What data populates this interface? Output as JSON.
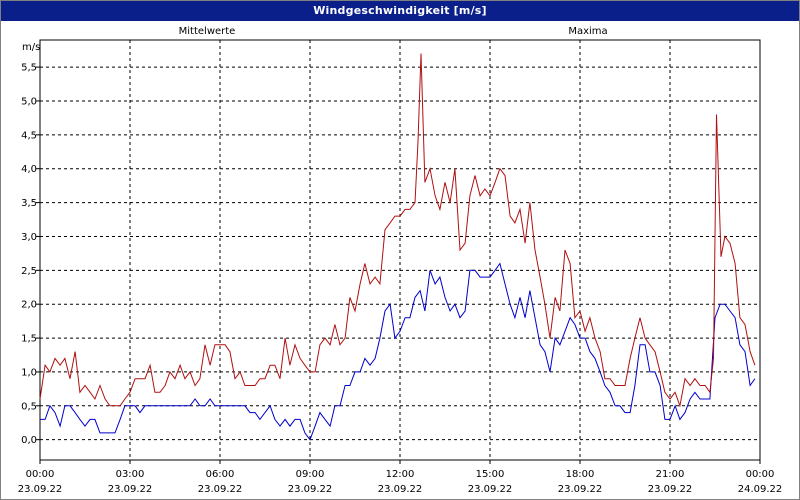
{
  "window": {
    "title": "Windgeschwindigkeit [m/s]"
  },
  "chart_data": {
    "type": "line",
    "title": "Windgeschwindigkeit [m/s]",
    "ylabel": "m/s",
    "xlabel": "",
    "ylim": [
      -0.3,
      5.9
    ],
    "xlim": [
      0,
      24
    ],
    "grid": true,
    "legend_placement": "top",
    "y_ticks": [
      "0,0",
      "0,5",
      "1,0",
      "1,5",
      "2,0",
      "2,5",
      "3,0",
      "3,5",
      "4,0",
      "4,5",
      "5,0",
      "5,5"
    ],
    "x_ticks": [
      {
        "time": "00:00",
        "date": "23.09.22"
      },
      {
        "time": "03:00",
        "date": "23.09.22"
      },
      {
        "time": "06:00",
        "date": "23.09.22"
      },
      {
        "time": "09:00",
        "date": "23.09.22"
      },
      {
        "time": "12:00",
        "date": "23.09.22"
      },
      {
        "time": "15:00",
        "date": "23.09.22"
      },
      {
        "time": "18:00",
        "date": "23.09.22"
      },
      {
        "time": "21:00",
        "date": "23.09.22"
      },
      {
        "time": "00:00",
        "date": "24.09.22"
      }
    ],
    "series": [
      {
        "name": "Mittelwerte",
        "color": "#0000cc",
        "points": [
          [
            0.0,
            0.3
          ],
          [
            0.17,
            0.3
          ],
          [
            0.33,
            0.5
          ],
          [
            0.5,
            0.4
          ],
          [
            0.67,
            0.2
          ],
          [
            0.83,
            0.5
          ],
          [
            1.0,
            0.5
          ],
          [
            1.17,
            0.4
          ],
          [
            1.33,
            0.3
          ],
          [
            1.5,
            0.2
          ],
          [
            1.67,
            0.3
          ],
          [
            1.83,
            0.3
          ],
          [
            2.0,
            0.1
          ],
          [
            2.17,
            0.1
          ],
          [
            2.33,
            0.1
          ],
          [
            2.5,
            0.1
          ],
          [
            2.67,
            0.3
          ],
          [
            2.83,
            0.5
          ],
          [
            3.0,
            0.5
          ],
          [
            3.17,
            0.5
          ],
          [
            3.33,
            0.4
          ],
          [
            3.5,
            0.5
          ],
          [
            3.67,
            0.5
          ],
          [
            3.83,
            0.5
          ],
          [
            4.0,
            0.5
          ],
          [
            4.17,
            0.5
          ],
          [
            4.33,
            0.5
          ],
          [
            4.5,
            0.5
          ],
          [
            4.67,
            0.5
          ],
          [
            4.83,
            0.5
          ],
          [
            5.0,
            0.5
          ],
          [
            5.17,
            0.6
          ],
          [
            5.33,
            0.5
          ],
          [
            5.5,
            0.5
          ],
          [
            5.67,
            0.6
          ],
          [
            5.83,
            0.5
          ],
          [
            6.0,
            0.5
          ],
          [
            6.17,
            0.5
          ],
          [
            6.33,
            0.5
          ],
          [
            6.5,
            0.5
          ],
          [
            6.67,
            0.5
          ],
          [
            6.83,
            0.5
          ],
          [
            7.0,
            0.4
          ],
          [
            7.17,
            0.4
          ],
          [
            7.33,
            0.3
          ],
          [
            7.5,
            0.4
          ],
          [
            7.67,
            0.5
          ],
          [
            7.83,
            0.3
          ],
          [
            8.0,
            0.2
          ],
          [
            8.17,
            0.3
          ],
          [
            8.33,
            0.2
          ],
          [
            8.5,
            0.3
          ],
          [
            8.67,
            0.3
          ],
          [
            8.83,
            0.1
          ],
          [
            9.0,
            0.0
          ],
          [
            9.17,
            0.2
          ],
          [
            9.33,
            0.4
          ],
          [
            9.5,
            0.3
          ],
          [
            9.67,
            0.2
          ],
          [
            9.83,
            0.5
          ],
          [
            10.0,
            0.5
          ],
          [
            10.17,
            0.8
          ],
          [
            10.33,
            0.8
          ],
          [
            10.5,
            1.0
          ],
          [
            10.67,
            1.0
          ],
          [
            10.83,
            1.2
          ],
          [
            11.0,
            1.1
          ],
          [
            11.17,
            1.2
          ],
          [
            11.33,
            1.5
          ],
          [
            11.5,
            1.9
          ],
          [
            11.67,
            2.0
          ],
          [
            11.83,
            1.5
          ],
          [
            12.0,
            1.6
          ],
          [
            12.17,
            1.8
          ],
          [
            12.33,
            1.8
          ],
          [
            12.5,
            2.1
          ],
          [
            12.67,
            2.2
          ],
          [
            12.83,
            1.9
          ],
          [
            13.0,
            2.5
          ],
          [
            13.17,
            2.3
          ],
          [
            13.33,
            2.4
          ],
          [
            13.5,
            2.1
          ],
          [
            13.67,
            1.9
          ],
          [
            13.83,
            2.0
          ],
          [
            14.0,
            1.8
          ],
          [
            14.17,
            1.9
          ],
          [
            14.33,
            2.5
          ],
          [
            14.5,
            2.5
          ],
          [
            14.67,
            2.4
          ],
          [
            14.83,
            2.4
          ],
          [
            15.0,
            2.4
          ],
          [
            15.17,
            2.5
          ],
          [
            15.33,
            2.6
          ],
          [
            15.5,
            2.3
          ],
          [
            15.67,
            2.0
          ],
          [
            15.83,
            1.8
          ],
          [
            16.0,
            2.1
          ],
          [
            16.17,
            1.8
          ],
          [
            16.33,
            2.2
          ],
          [
            16.5,
            1.8
          ],
          [
            16.67,
            1.4
          ],
          [
            16.83,
            1.3
          ],
          [
            17.0,
            1.0
          ],
          [
            17.17,
            1.5
          ],
          [
            17.33,
            1.4
          ],
          [
            17.5,
            1.6
          ],
          [
            17.67,
            1.8
          ],
          [
            17.83,
            1.7
          ],
          [
            18.0,
            1.5
          ],
          [
            18.17,
            1.5
          ],
          [
            18.33,
            1.3
          ],
          [
            18.5,
            1.2
          ],
          [
            18.67,
            1.0
          ],
          [
            18.83,
            0.8
          ],
          [
            19.0,
            0.7
          ],
          [
            19.17,
            0.5
          ],
          [
            19.33,
            0.5
          ],
          [
            19.5,
            0.4
          ],
          [
            19.67,
            0.4
          ],
          [
            19.83,
            0.8
          ],
          [
            20.0,
            1.4
          ],
          [
            20.17,
            1.4
          ],
          [
            20.33,
            1.0
          ],
          [
            20.5,
            1.0
          ],
          [
            20.67,
            0.8
          ],
          [
            20.83,
            0.3
          ],
          [
            21.0,
            0.3
          ],
          [
            21.17,
            0.5
          ],
          [
            21.33,
            0.3
          ],
          [
            21.5,
            0.4
          ],
          [
            21.67,
            0.6
          ],
          [
            21.83,
            0.7
          ],
          [
            22.0,
            0.6
          ],
          [
            22.17,
            0.6
          ],
          [
            22.33,
            0.6
          ],
          [
            22.5,
            1.8
          ],
          [
            22.67,
            2.0
          ],
          [
            22.83,
            2.0
          ],
          [
            23.0,
            1.9
          ],
          [
            23.17,
            1.8
          ],
          [
            23.33,
            1.4
          ],
          [
            23.5,
            1.3
          ],
          [
            23.67,
            0.8
          ],
          [
            23.83,
            0.9
          ]
        ]
      },
      {
        "name": "Maxima",
        "color": "#b01010",
        "points": [
          [
            0.0,
            0.6
          ],
          [
            0.17,
            1.1
          ],
          [
            0.33,
            1.0
          ],
          [
            0.5,
            1.2
          ],
          [
            0.67,
            1.1
          ],
          [
            0.83,
            1.2
          ],
          [
            1.0,
            0.9
          ],
          [
            1.17,
            1.3
          ],
          [
            1.33,
            0.7
          ],
          [
            1.5,
            0.8
          ],
          [
            1.67,
            0.7
          ],
          [
            1.83,
            0.6
          ],
          [
            2.0,
            0.8
          ],
          [
            2.17,
            0.6
          ],
          [
            2.33,
            0.5
          ],
          [
            2.5,
            0.5
          ],
          [
            2.67,
            0.5
          ],
          [
            2.83,
            0.6
          ],
          [
            3.0,
            0.7
          ],
          [
            3.17,
            0.9
          ],
          [
            3.33,
            0.9
          ],
          [
            3.5,
            0.9
          ],
          [
            3.67,
            1.1
          ],
          [
            3.83,
            0.7
          ],
          [
            4.0,
            0.7
          ],
          [
            4.17,
            0.8
          ],
          [
            4.33,
            1.0
          ],
          [
            4.5,
            0.9
          ],
          [
            4.67,
            1.1
          ],
          [
            4.83,
            0.9
          ],
          [
            5.0,
            1.0
          ],
          [
            5.17,
            0.8
          ],
          [
            5.33,
            0.9
          ],
          [
            5.5,
            1.4
          ],
          [
            5.67,
            1.1
          ],
          [
            5.83,
            1.4
          ],
          [
            6.0,
            1.4
          ],
          [
            6.17,
            1.4
          ],
          [
            6.33,
            1.3
          ],
          [
            6.5,
            0.9
          ],
          [
            6.67,
            1.0
          ],
          [
            6.83,
            0.8
          ],
          [
            7.0,
            0.8
          ],
          [
            7.17,
            0.8
          ],
          [
            7.33,
            0.9
          ],
          [
            7.5,
            0.9
          ],
          [
            7.67,
            1.1
          ],
          [
            7.83,
            1.1
          ],
          [
            8.0,
            0.9
          ],
          [
            8.17,
            1.5
          ],
          [
            8.33,
            1.1
          ],
          [
            8.5,
            1.4
          ],
          [
            8.67,
            1.2
          ],
          [
            8.83,
            1.1
          ],
          [
            9.0,
            1.0
          ],
          [
            9.17,
            1.0
          ],
          [
            9.33,
            1.4
          ],
          [
            9.5,
            1.5
          ],
          [
            9.67,
            1.4
          ],
          [
            9.83,
            1.7
          ],
          [
            10.0,
            1.4
          ],
          [
            10.17,
            1.5
          ],
          [
            10.33,
            2.1
          ],
          [
            10.5,
            1.9
          ],
          [
            10.67,
            2.3
          ],
          [
            10.83,
            2.6
          ],
          [
            11.0,
            2.3
          ],
          [
            11.17,
            2.4
          ],
          [
            11.33,
            2.3
          ],
          [
            11.5,
            3.1
          ],
          [
            11.67,
            3.2
          ],
          [
            11.83,
            3.3
          ],
          [
            12.0,
            3.3
          ],
          [
            12.17,
            3.4
          ],
          [
            12.33,
            3.4
          ],
          [
            12.5,
            3.5
          ],
          [
            12.6,
            4.4
          ],
          [
            12.7,
            5.7
          ],
          [
            12.83,
            3.8
          ],
          [
            13.0,
            4.0
          ],
          [
            13.17,
            3.6
          ],
          [
            13.33,
            3.4
          ],
          [
            13.5,
            3.8
          ],
          [
            13.67,
            3.5
          ],
          [
            13.83,
            4.0
          ],
          [
            14.0,
            2.8
          ],
          [
            14.17,
            2.9
          ],
          [
            14.33,
            3.6
          ],
          [
            14.5,
            3.9
          ],
          [
            14.67,
            3.6
          ],
          [
            14.83,
            3.7
          ],
          [
            15.0,
            3.6
          ],
          [
            15.17,
            3.8
          ],
          [
            15.33,
            4.0
          ],
          [
            15.5,
            3.9
          ],
          [
            15.67,
            3.3
          ],
          [
            15.83,
            3.2
          ],
          [
            16.0,
            3.4
          ],
          [
            16.17,
            2.9
          ],
          [
            16.33,
            3.5
          ],
          [
            16.5,
            2.8
          ],
          [
            16.67,
            2.4
          ],
          [
            16.83,
            2.0
          ],
          [
            17.0,
            1.5
          ],
          [
            17.17,
            2.1
          ],
          [
            17.33,
            1.9
          ],
          [
            17.5,
            2.8
          ],
          [
            17.67,
            2.6
          ],
          [
            17.83,
            1.8
          ],
          [
            18.0,
            1.9
          ],
          [
            18.17,
            1.6
          ],
          [
            18.33,
            1.8
          ],
          [
            18.5,
            1.5
          ],
          [
            18.67,
            1.3
          ],
          [
            18.83,
            0.9
          ],
          [
            19.0,
            0.9
          ],
          [
            19.17,
            0.8
          ],
          [
            19.33,
            0.8
          ],
          [
            19.5,
            0.8
          ],
          [
            19.67,
            1.2
          ],
          [
            19.83,
            1.5
          ],
          [
            20.0,
            1.8
          ],
          [
            20.17,
            1.5
          ],
          [
            20.33,
            1.4
          ],
          [
            20.5,
            1.3
          ],
          [
            20.67,
            1.0
          ],
          [
            20.83,
            0.7
          ],
          [
            21.0,
            0.6
          ],
          [
            21.17,
            0.7
          ],
          [
            21.33,
            0.5
          ],
          [
            21.5,
            0.9
          ],
          [
            21.67,
            0.8
          ],
          [
            21.83,
            0.9
          ],
          [
            22.0,
            0.8
          ],
          [
            22.17,
            0.8
          ],
          [
            22.33,
            0.7
          ],
          [
            22.45,
            1.2
          ],
          [
            22.55,
            4.8
          ],
          [
            22.7,
            2.7
          ],
          [
            22.83,
            3.0
          ],
          [
            23.0,
            2.9
          ],
          [
            23.17,
            2.6
          ],
          [
            23.33,
            1.8
          ],
          [
            23.5,
            1.7
          ],
          [
            23.67,
            1.3
          ],
          [
            23.83,
            1.1
          ]
        ]
      }
    ]
  }
}
